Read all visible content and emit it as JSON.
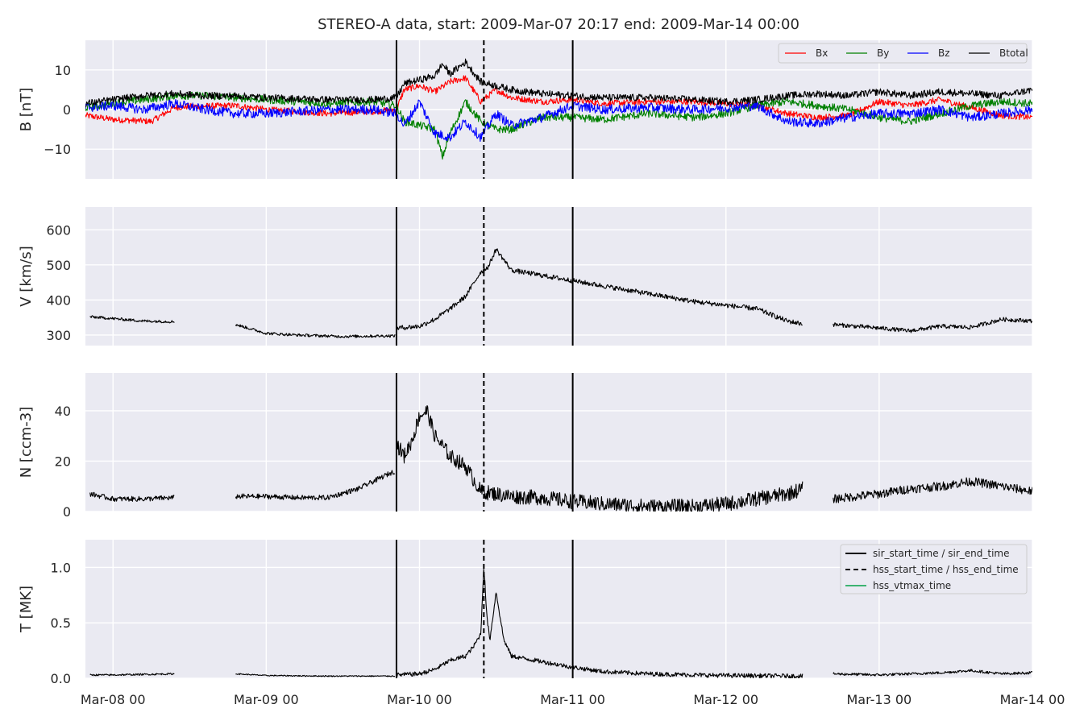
{
  "chart_data": {
    "type": "line",
    "title": "STEREO-A data, start: 2009-Mar-07 20:17  end: 2009-Mar-14 00:00",
    "x_range_days": [
      -0.18,
      6.0
    ],
    "x_ticks": [
      {
        "day": 0,
        "label": "Mar-08 00"
      },
      {
        "day": 1,
        "label": "Mar-09 00"
      },
      {
        "day": 2,
        "label": "Mar-10 00"
      },
      {
        "day": 3,
        "label": "Mar-11 00"
      },
      {
        "day": 4,
        "label": "Mar-12 00"
      },
      {
        "day": 5,
        "label": "Mar-13 00"
      },
      {
        "day": 6,
        "label": "Mar-14 00"
      }
    ],
    "events": [
      {
        "name": "sir_start_time",
        "day": 1.85,
        "style": "solid"
      },
      {
        "name": "hss_start_time",
        "day": 2.42,
        "style": "dashed"
      },
      {
        "name": "sir_end_time",
        "day": 3.0,
        "style": "solid"
      }
    ],
    "event_legend": [
      {
        "label": "sir_start_time / sir_end_time",
        "style": "solid",
        "color": "#000000"
      },
      {
        "label": "hss_start_time / hss_end_time",
        "style": "dashed",
        "color": "#000000"
      },
      {
        "label": "hss_vtmax_time",
        "style": "solid",
        "color": "#3cb371"
      }
    ],
    "panels": [
      {
        "ylabel": "B [nT]",
        "ylim": [
          -17.5,
          17.5
        ],
        "yticks": [
          {
            "v": 10,
            "l": "10"
          },
          {
            "v": 0,
            "l": "0"
          },
          {
            "v": -10,
            "l": "−10"
          }
        ],
        "legend": "series",
        "series": [
          {
            "name": "Bx",
            "color": "#ff0000",
            "x": [
              -0.18,
              0.0,
              0.25,
              0.4,
              0.5,
              0.8,
              1.0,
              1.4,
              1.7,
              1.85,
              1.9,
              2.0,
              2.1,
              2.2,
              2.3,
              2.4,
              2.5,
              2.6,
              2.8,
              3.0,
              3.2,
              3.5,
              3.8,
              4.0,
              4.2,
              4.4,
              4.6,
              4.8,
              5.0,
              5.2,
              5.4,
              5.6,
              5.8,
              6.0
            ],
            "y": [
              -1.5,
              -2.5,
              -3.0,
              0.5,
              0.8,
              1.0,
              0.0,
              -1.0,
              -0.5,
              0.0,
              5.0,
              6.0,
              4.5,
              7.0,
              8.0,
              2.0,
              5.0,
              3.0,
              2.0,
              2.5,
              1.5,
              2.0,
              2.0,
              1.5,
              1.0,
              -1.0,
              -2.0,
              -1.5,
              2.0,
              1.0,
              2.5,
              0.5,
              -1.5,
              -2.0
            ],
            "jitter": 0.8
          },
          {
            "name": "By",
            "color": "#008000",
            "x": [
              -0.18,
              0.0,
              0.2,
              0.4,
              0.6,
              0.8,
              1.0,
              1.4,
              1.7,
              1.85,
              1.9,
              2.0,
              2.1,
              2.15,
              2.2,
              2.3,
              2.4,
              2.5,
              2.6,
              2.8,
              3.0,
              3.2,
              3.5,
              3.8,
              4.0,
              4.2,
              4.4,
              4.6,
              4.8,
              5.0,
              5.2,
              5.4,
              5.6,
              5.8,
              6.0
            ],
            "y": [
              0.5,
              1.5,
              2.5,
              3.5,
              3.5,
              3.0,
              2.5,
              1.5,
              2.0,
              1.0,
              -3.0,
              -4.0,
              -5.0,
              -12.0,
              -6.0,
              2.0,
              -3.0,
              -5.0,
              -5.0,
              -2.0,
              -2.0,
              -2.5,
              -1.0,
              -2.0,
              -1.0,
              1.0,
              2.0,
              1.0,
              0.0,
              -2.0,
              -3.0,
              -1.0,
              1.0,
              2.0,
              1.5
            ],
            "jitter": 1.0
          },
          {
            "name": "Bz",
            "color": "#0000ff",
            "x": [
              -0.18,
              0.0,
              0.2,
              0.4,
              0.6,
              0.8,
              1.0,
              1.4,
              1.7,
              1.85,
              1.9,
              2.0,
              2.1,
              2.2,
              2.3,
              2.4,
              2.5,
              2.6,
              2.8,
              3.0,
              3.2,
              3.5,
              3.8,
              4.0,
              4.2,
              4.4,
              4.6,
              4.8,
              5.0,
              5.2,
              5.4,
              5.6,
              5.8,
              6.0
            ],
            "y": [
              0.5,
              1.0,
              0.0,
              1.5,
              0.0,
              -1.0,
              -1.0,
              0.0,
              0.0,
              -1.0,
              -4.0,
              2.0,
              -6.0,
              -7.0,
              -3.0,
              -7.0,
              -1.0,
              -4.0,
              -2.0,
              1.0,
              0.0,
              0.5,
              0.0,
              0.5,
              1.0,
              -3.0,
              -3.5,
              -2.0,
              -1.0,
              -1.0,
              0.0,
              -2.0,
              -1.0,
              0.0
            ],
            "jitter": 1.2
          },
          {
            "name": "Btotal",
            "color": "#000000",
            "x": [
              -0.18,
              0.0,
              0.2,
              0.4,
              0.6,
              0.8,
              1.0,
              1.4,
              1.7,
              1.85,
              1.9,
              2.0,
              2.1,
              2.15,
              2.2,
              2.3,
              2.4,
              2.5,
              2.6,
              2.8,
              3.0,
              3.2,
              3.5,
              3.8,
              4.0,
              4.2,
              4.4,
              4.6,
              4.8,
              5.0,
              5.2,
              5.4,
              5.6,
              5.8,
              6.0
            ],
            "y": [
              1.5,
              2.5,
              3.5,
              4.0,
              3.5,
              3.5,
              3.0,
              2.5,
              2.5,
              3.0,
              6.5,
              7.5,
              8.5,
              11.5,
              9.0,
              12.0,
              7.0,
              6.0,
              5.0,
              4.0,
              3.5,
              3.0,
              3.0,
              2.5,
              2.0,
              2.5,
              3.5,
              4.0,
              3.5,
              4.5,
              3.5,
              4.5,
              4.0,
              3.5,
              5.0
            ],
            "jitter": 0.9
          }
        ]
      },
      {
        "ylabel": "V [km/s]",
        "ylim": [
          270,
          665
        ],
        "yticks": [
          {
            "v": 600,
            "l": "600"
          },
          {
            "v": 500,
            "l": "500"
          },
          {
            "v": 400,
            "l": "400"
          },
          {
            "v": 300,
            "l": "300"
          }
        ],
        "series": [
          {
            "name": "",
            "color": "#000000",
            "x": [
              -0.15,
              0.0,
              0.2,
              0.4
            ],
            "y": [
              352,
              347,
              340,
              338
            ],
            "jitter": 4
          },
          {
            "name": "",
            "color": "#000000",
            "x": [
              0.8,
              1.0,
              1.2,
              1.5,
              1.84
            ],
            "y": [
              330,
              305,
              300,
              296,
              298
            ],
            "jitter": 4
          },
          {
            "name": "",
            "color": "#000000",
            "x": [
              1.85,
              2.0,
              2.1,
              2.2,
              2.3,
              2.4,
              2.45,
              2.5,
              2.6,
              2.8,
              3.0,
              3.2,
              3.4,
              3.6,
              3.8,
              4.0,
              4.2,
              4.4,
              4.5
            ],
            "y": [
              320,
              325,
              345,
              375,
              410,
              480,
              495,
              545,
              485,
              470,
              455,
              440,
              425,
              410,
              395,
              385,
              375,
              340,
              332
            ],
            "jitter": 7
          },
          {
            "name": "",
            "color": "#000000",
            "x": [
              4.7,
              5.0,
              5.2,
              5.4,
              5.6,
              5.8,
              6.0
            ],
            "y": [
              330,
              320,
              312,
              325,
              322,
              345,
              340
            ],
            "jitter": 6
          }
        ]
      },
      {
        "ylabel": "N [ccm-3]",
        "ylim": [
          0,
          55
        ],
        "yticks": [
          {
            "v": 40,
            "l": "40"
          },
          {
            "v": 20,
            "l": "20"
          },
          {
            "v": 0,
            "l": "0"
          }
        ],
        "series": [
          {
            "name": "",
            "color": "#000000",
            "x": [
              -0.15,
              0.0,
              0.2,
              0.4
            ],
            "y": [
              7,
              5,
              5,
              5.5
            ],
            "jitter": 1.0
          },
          {
            "name": "",
            "color": "#000000",
            "x": [
              0.8,
              1.0,
              1.2,
              1.4,
              1.6,
              1.8,
              1.84
            ],
            "y": [
              6,
              6,
              5.5,
              5.5,
              9,
              15,
              16
            ],
            "jitter": 1.0
          },
          {
            "name": "",
            "color": "#000000",
            "x": [
              1.85,
              1.9,
              1.95,
              2.0,
              2.05,
              2.1,
              2.2,
              2.3,
              2.4,
              2.5,
              2.6,
              2.8,
              3.0,
              3.2,
              3.5,
              3.8,
              4.0,
              4.2,
              4.4,
              4.5
            ],
            "y": [
              27,
              22,
              28,
              38,
              40,
              30,
              22,
              18,
              8,
              7,
              6,
              5.5,
              4,
              3,
              2,
              2,
              3,
              5,
              7,
              9
            ],
            "jitter": 3.0
          },
          {
            "name": "",
            "color": "#000000",
            "x": [
              4.7,
              5.0,
              5.2,
              5.4,
              5.6,
              5.8,
              6.0
            ],
            "y": [
              5,
              7,
              9,
              10,
              12,
              10,
              8
            ],
            "jitter": 1.8
          }
        ]
      },
      {
        "ylabel": "T [MK]",
        "ylim": [
          0,
          1.25
        ],
        "yticks": [
          {
            "v": 1.0,
            "l": "1.0"
          },
          {
            "v": 0.5,
            "l": "0.5"
          },
          {
            "v": 0.0,
            "l": "0.0"
          }
        ],
        "legend": "events",
        "series": [
          {
            "name": "",
            "color": "#000000",
            "x": [
              -0.15,
              0.0,
              0.2,
              0.4
            ],
            "y": [
              0.03,
              0.03,
              0.035,
              0.04
            ],
            "jitter": 0.008
          },
          {
            "name": "",
            "color": "#000000",
            "x": [
              0.8,
              1.0,
              1.4,
              1.84
            ],
            "y": [
              0.04,
              0.025,
              0.02,
              0.02
            ],
            "jitter": 0.005
          },
          {
            "name": "",
            "color": "#000000",
            "x": [
              1.85,
              2.0,
              2.1,
              2.2,
              2.3,
              2.35,
              2.4,
              2.42,
              2.44,
              2.46,
              2.5,
              2.55,
              2.6,
              2.8,
              3.0,
              3.2,
              3.5,
              3.8,
              4.0,
              4.5
            ],
            "y": [
              0.03,
              0.04,
              0.08,
              0.16,
              0.2,
              0.28,
              0.4,
              1.02,
              0.55,
              0.35,
              0.78,
              0.35,
              0.2,
              0.15,
              0.1,
              0.06,
              0.04,
              0.03,
              0.025,
              0.02
            ],
            "jitter": 0.02
          },
          {
            "name": "",
            "color": "#000000",
            "x": [
              4.7,
              5.0,
              5.4,
              5.6,
              5.8,
              6.0
            ],
            "y": [
              0.04,
              0.03,
              0.05,
              0.07,
              0.04,
              0.05
            ],
            "jitter": 0.012
          }
        ]
      }
    ]
  }
}
